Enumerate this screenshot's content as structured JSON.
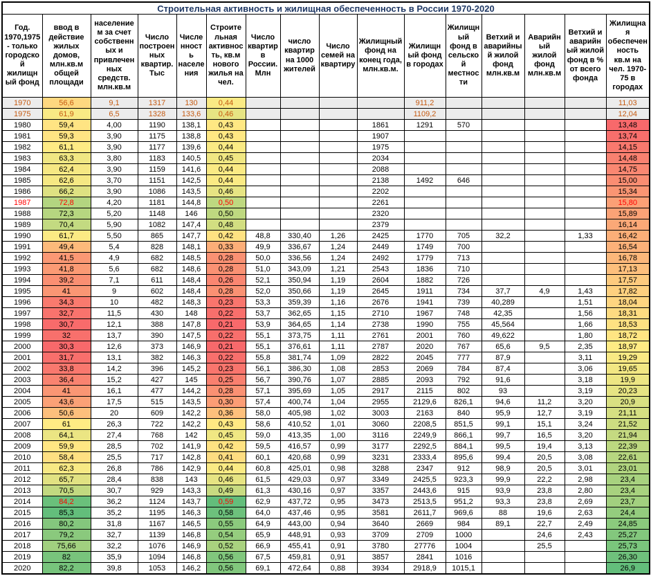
{
  "title": "Строительная активность и жилищная обеспеченность в России 1970-2020",
  "colors": {
    "scale_min": "#F8696B",
    "scale_mid": "#FFEB84",
    "scale_max": "#63BE7B",
    "historic_bg": "#ECECEC",
    "historic_text": "#C55A11",
    "red_text": "#FF0000",
    "title_text": "#1F3864",
    "border": "#000000"
  },
  "table": {
    "columns": [
      "Год. 1970,1975 -  только городской жилищный фонд",
      "ввод в действие жилых домов, млн.кв.м общей площади",
      "населением за счет собственных и привлеченных средств. млн.кв.м",
      "Число построенных квартир. Тыс",
      "Численность населения",
      "Строительная активность, кв.м нового жилья на чел.",
      "Число квартир в России. Млн",
      "число квартир на 1000 жителей",
      "Число семей на квартиру",
      "Жилищный фонд на конец года, млн.кв.м.",
      "Жилищный фонд в городах",
      "Жилищный фонд в сельской местности",
      "Ветхий и аварийный жилой фонд млн.кв.м",
      "Аварийный жилой фонд млн.кв.м",
      "Ветхий и аварийный жилой фонд в % от всего фонда",
      "Жилищная обеспеченность кв.м на чел. 1970-75 в городах"
    ],
    "scales": {
      "1": {
        "min": 30.3,
        "mid": 61.0,
        "max": 85.3
      },
      "5": {
        "min": 0.21,
        "mid": 0.435,
        "max": 0.59
      },
      "15": {
        "min": 13.48,
        "mid": 18.97,
        "max": 26.9
      }
    },
    "rows": [
      {
        "historic": true,
        "cells": [
          "1970",
          "56,6",
          "9,1",
          "1317",
          "130",
          "0,44",
          "",
          "",
          "",
          "",
          "911,2",
          "",
          "",
          "",
          "",
          "11,03"
        ]
      },
      {
        "historic": true,
        "cells": [
          "1975",
          "61,9",
          "6,5",
          "1328",
          "133,6",
          "0,46",
          "",
          "",
          "",
          "",
          "1109,2",
          "",
          "",
          "",
          "",
          "12,04"
        ]
      },
      {
        "cells": [
          "1980",
          "59,4",
          "4,00",
          "1190",
          "138,1",
          "0,43",
          "",
          "",
          "",
          "1861",
          "1291",
          "570",
          "",
          "",
          "",
          "13,48"
        ]
      },
      {
        "cells": [
          "1981",
          "59,3",
          "3,90",
          "1175",
          "138,8",
          "0,43",
          "",
          "",
          "",
          "1907",
          "",
          "",
          "",
          "",
          "",
          "13,74"
        ]
      },
      {
        "cells": [
          "1982",
          "61,1",
          "3,90",
          "1177",
          "139,6",
          "0,44",
          "",
          "",
          "",
          "1975",
          "",
          "",
          "",
          "",
          "",
          "14,15"
        ]
      },
      {
        "cells": [
          "1983",
          "63,3",
          "3,80",
          "1183",
          "140,5",
          "0,45",
          "",
          "",
          "",
          "2034",
          "",
          "",
          "",
          "",
          "",
          "14,48"
        ]
      },
      {
        "cells": [
          "1984",
          "62,4",
          "3,90",
          "1159",
          "141,6",
          "0,44",
          "",
          "",
          "",
          "2088",
          "",
          "",
          "",
          "",
          "",
          "14,75"
        ]
      },
      {
        "cells": [
          "1985",
          "62,6",
          "3,70",
          "1151",
          "142,5",
          "0,44",
          "",
          "",
          "",
          "2138",
          "1492",
          "646",
          "",
          "",
          "",
          "15,00"
        ]
      },
      {
        "cells": [
          "1986",
          "66,2",
          "3,90",
          "1086",
          "143,5",
          "0,46",
          "",
          "",
          "",
          "2202",
          "",
          "",
          "",
          "",
          "",
          "15,34"
        ]
      },
      {
        "red": [
          0,
          1,
          5,
          15
        ],
        "cells": [
          "1987",
          "72,8",
          "4,20",
          "1181",
          "144,8",
          "0,50",
          "",
          "",
          "",
          "2261",
          "",
          "",
          "",
          "",
          "",
          "15,80"
        ]
      },
      {
        "cells": [
          "1988",
          "72,3",
          "5,20",
          "1148",
          "146",
          "0,50",
          "",
          "",
          "",
          "2320",
          "",
          "",
          "",
          "",
          "",
          "15,89"
        ]
      },
      {
        "cells": [
          "1989",
          "70,4",
          "5,90",
          "1082",
          "147,4",
          "0,48",
          "",
          "",
          "",
          "2379",
          "",
          "",
          "",
          "",
          "",
          "16,14"
        ]
      },
      {
        "cells": [
          "1990",
          "61,7",
          "5,50",
          "865",
          "147,7",
          "0,42",
          "48,8",
          "330,40",
          "1,26",
          "2425",
          "1770",
          "705",
          "32,2",
          "",
          "1,33",
          "16,42"
        ]
      },
      {
        "cells": [
          "1991",
          "49,4",
          "5,4",
          "828",
          "148,1",
          "0,33",
          "49,9",
          "336,67",
          "1,24",
          "2449",
          "1749",
          "700",
          "",
          "",
          "",
          "16,54"
        ]
      },
      {
        "cells": [
          "1992",
          "41,5",
          "4,9",
          "682",
          "148,5",
          "0,28",
          "50,0",
          "336,56",
          "1,24",
          "2492",
          "1779",
          "713",
          "",
          "",
          "",
          "16,78"
        ]
      },
      {
        "cells": [
          "1993",
          "41,8",
          "5,6",
          "682",
          "148,6",
          "0,28",
          "51,0",
          "343,09",
          "1,21",
          "2543",
          "1836",
          "710",
          "",
          "",
          "",
          "17,13"
        ]
      },
      {
        "cells": [
          "1994",
          "39,2",
          "7,1",
          "611",
          "148,4",
          "0,26",
          "52,1",
          "350,94",
          "1,19",
          "2604",
          "1882",
          "726",
          "",
          "",
          "",
          "17,57"
        ]
      },
      {
        "cells": [
          "1995",
          "41",
          "9",
          "602",
          "148,4",
          "0,28",
          "52,0",
          "350,66",
          "1,19",
          "2645",
          "1911",
          "734",
          "37,7",
          "4,9",
          "1,43",
          "17,82"
        ]
      },
      {
        "cells": [
          "1996",
          "34,3",
          "10",
          "482",
          "148,3",
          "0,23",
          "53,3",
          "359,39",
          "1,16",
          "2676",
          "1941",
          "739",
          "40,289",
          "",
          "1,51",
          "18,04"
        ]
      },
      {
        "cells": [
          "1997",
          "32,7",
          "11,5",
          "430",
          "148",
          "0,22",
          "53,7",
          "362,65",
          "1,15",
          "2710",
          "1967",
          "748",
          "42,35",
          "",
          "1,56",
          "18,31"
        ]
      },
      {
        "cells": [
          "1998",
          "30,7",
          "12,1",
          "388",
          "147,8",
          "0,21",
          "53,9",
          "364,65",
          "1,14",
          "2738",
          "1990",
          "755",
          "45,564",
          "",
          "1,66",
          "18,53"
        ]
      },
      {
        "cells": [
          "1999",
          "32",
          "13,7",
          "390",
          "147,5",
          "0,22",
          "55,1",
          "373,75",
          "1,11",
          "2761",
          "2001",
          "760",
          "49,622",
          "",
          "1,80",
          "18,72"
        ]
      },
      {
        "cells": [
          "2000",
          "30,3",
          "12,6",
          "373",
          "146,9",
          "0,21",
          "55,1",
          "376,61",
          "1,11",
          "2787",
          "2020",
          "767",
          "65,6",
          "9,5",
          "2,35",
          "18,97"
        ]
      },
      {
        "cells": [
          "2001",
          "31,7",
          "13,1",
          "382",
          "146,3",
          "0,22",
          "55,8",
          "381,74",
          "1,09",
          "2822",
          "2045",
          "777",
          "87,9",
          "",
          "3,11",
          "19,29"
        ]
      },
      {
        "cells": [
          "2002",
          "33,8",
          "14,2",
          "396",
          "145,2",
          "0,23",
          "56,1",
          "386,30",
          "1,08",
          "2853",
          "2069",
          "784",
          "87,4",
          "",
          "3,06",
          "19,65"
        ]
      },
      {
        "cells": [
          "2003",
          "36,4",
          "15,2",
          "427",
          "145",
          "0,25",
          "56,7",
          "390,76",
          "1,07",
          "2885",
          "2093",
          "792",
          "91,6",
          "",
          "3,18",
          "19,9"
        ]
      },
      {
        "cells": [
          "2004",
          "41",
          "16,1",
          "477",
          "144,2",
          "0,28",
          "57,1",
          "395,69",
          "1,05",
          "2917",
          "2115",
          "802",
          "93",
          "",
          "3,19",
          "20,23"
        ]
      },
      {
        "cells": [
          "2005",
          "43,6",
          "17,5",
          "515",
          "143,5",
          "0,30",
          "57,4",
          "400,74",
          "1,04",
          "2955",
          "2129,6",
          "826,1",
          "94,6",
          "11,2",
          "3,20",
          "20,9"
        ]
      },
      {
        "cells": [
          "2006",
          "50,6",
          "20",
          "609",
          "142,2",
          "0,36",
          "58,0",
          "405,98",
          "1,02",
          "3003",
          "2163",
          "840",
          "95,9",
          "12,7",
          "3,19",
          "21,11"
        ]
      },
      {
        "cells": [
          "2007",
          "61",
          "26,3",
          "722",
          "142,2",
          "0,43",
          "58,6",
          "410,52",
          "1,01",
          "3060",
          "2208,5",
          "851,5",
          "99,1",
          "15,1",
          "3,24",
          "21,52"
        ]
      },
      {
        "cells": [
          "2008",
          "64,1",
          "27,4",
          "768",
          "142",
          "0,45",
          "59,0",
          "413,35",
          "1,00",
          "3116",
          "2249,9",
          "866,1",
          "99,7",
          "16,5",
          "3,20",
          "21,94"
        ]
      },
      {
        "cells": [
          "2009",
          "59,9",
          "28,5",
          "702",
          "141,9",
          "0,42",
          "59,5",
          "416,57",
          "0,99",
          "3177",
          "2292,5",
          "884,1",
          "99,5",
          "19,4",
          "3,13",
          "22,39"
        ]
      },
      {
        "cells": [
          "2010",
          "58,4",
          "25,5",
          "717",
          "142,8",
          "0,41",
          "60,1",
          "420,68",
          "0,99",
          "3231",
          "2333,4",
          "895,6",
          "99,4",
          "20,5",
          "3,08",
          "22,61"
        ]
      },
      {
        "cells": [
          "2011",
          "62,3",
          "26,8",
          "786",
          "142,9",
          "0,44",
          "60,8",
          "425,01",
          "0,98",
          "3288",
          "2347",
          "912",
          "98,9",
          "20,5",
          "3,01",
          "23,01"
        ]
      },
      {
        "cells": [
          "2012",
          "65,7",
          "28,4",
          "838",
          "143",
          "0,46",
          "61,5",
          "429,03",
          "0,97",
          "3349",
          "2425,5",
          "923,3",
          "99,9",
          "22,2",
          "2,98",
          "23,4"
        ]
      },
      {
        "cells": [
          "2013",
          "70,5",
          "30,7",
          "929",
          "143,3",
          "0,49",
          "61,3",
          "430,16",
          "0,97",
          "3357",
          "2443,6",
          "915",
          "93,9",
          "23,8",
          "2,80",
          "23,4"
        ]
      },
      {
        "red": [
          1,
          5
        ],
        "cells": [
          "2014",
          "84,2",
          "36,2",
          "1124",
          "143,7",
          "0,59",
          "62,9",
          "437,72",
          "0,95",
          "3473",
          "2513,5",
          "951,2",
          "93,3",
          "23,8",
          "2,69",
          "23,7"
        ]
      },
      {
        "cells": [
          "2015",
          "85,3",
          "35,2",
          "1195",
          "146,3",
          "0,58",
          "64,0",
          "437,46",
          "0,95",
          "3581",
          "2611,7",
          "969,6",
          "88",
          "19,6",
          "2,63",
          "24,4"
        ]
      },
      {
        "cells": [
          "2016",
          "80,2",
          "31,8",
          "1167",
          "146,5",
          "0,55",
          "64,9",
          "443,00",
          "0,94",
          "3640",
          "2669",
          "984",
          "89,1",
          "22,7",
          "2,49",
          "24,85"
        ]
      },
      {
        "cells": [
          "2017",
          "79,2",
          "32,7",
          "1139",
          "146,8",
          "0,54",
          "65,9",
          "448,91",
          "0,93",
          "3709",
          "2709",
          "1000",
          "",
          "24,6",
          "2,43",
          "25,27"
        ]
      },
      {
        "cells": [
          "2018",
          "75,66",
          "32,2",
          "1076",
          "146,9",
          "0,52",
          "66,9",
          "455,41",
          "0,91",
          "3780",
          "27776",
          "1004",
          "",
          "25,5",
          "",
          "25,73"
        ]
      },
      {
        "cells": [
          "2019",
          "82",
          "35,9",
          "1094",
          "146,8",
          "0,56",
          "67,5",
          "459,81",
          "0,91",
          "3857",
          "2841",
          "1016",
          "",
          "",
          "",
          "26,30"
        ]
      },
      {
        "cells": [
          "2020",
          "82,2",
          "39,8",
          "1053",
          "146,2",
          "0,56",
          "69,1",
          "472,64",
          "0,88",
          "3934",
          "2918,9",
          "1015,1",
          "",
          "",
          "",
          "26,9"
        ]
      }
    ]
  }
}
